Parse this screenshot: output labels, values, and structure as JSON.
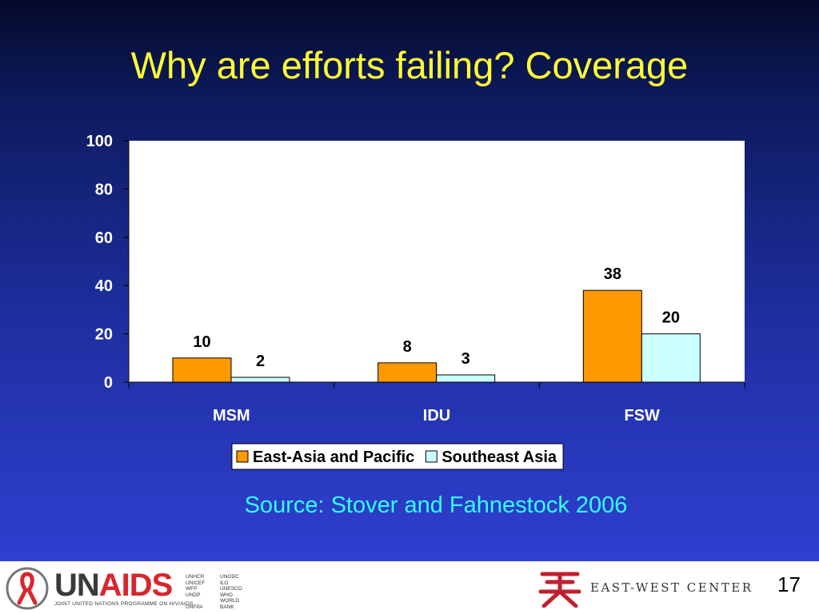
{
  "slide": {
    "title": "Why are efforts failing? Coverage",
    "source": "Source: Stover and Fahnestock 2006",
    "page_number": "17"
  },
  "footer": {
    "unaids_logo_text": "UNAIDS",
    "unaids_subtitle": "JOINT UNITED NATIONS PROGRAMME ON HIV/AIDS",
    "cosponsors": [
      "UNHCR",
      "UNODC",
      "UNICEF",
      "ILO",
      "WFP",
      "UNESCO",
      "UNDP",
      "WHO",
      "UNFPA",
      "WORLD BANK"
    ],
    "ewc_logo_text": "EAST-WEST CENTER"
  },
  "chart_data": {
    "type": "bar",
    "categories": [
      "MSM",
      "IDU",
      "FSW"
    ],
    "series": [
      {
        "name": "East-Asia and Pacific",
        "values": [
          10,
          8,
          38
        ],
        "color": "#ff9900"
      },
      {
        "name": "Southeast Asia",
        "values": [
          2,
          3,
          20
        ],
        "color": "#ccffff"
      }
    ],
    "ylim": [
      0,
      100
    ],
    "yticks": [
      0,
      20,
      40,
      60,
      80,
      100
    ],
    "data_labels": true,
    "grid": false,
    "legend": "bottom"
  }
}
